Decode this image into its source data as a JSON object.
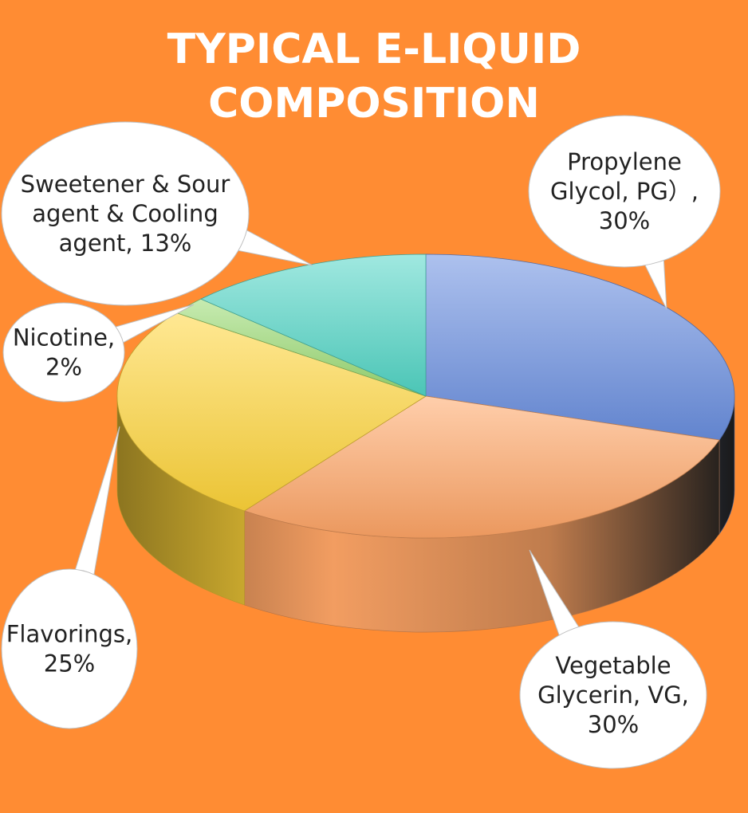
{
  "chart_data": {
    "type": "pie",
    "title_lines": [
      "TYPICAL E-LIQUID",
      "COMPOSITION"
    ],
    "series": [
      {
        "name": "Propylene Glycol, PG）",
        "value": 30,
        "label_lines": [
          "Propylene",
          "Glycol, PG）,",
          "30%"
        ],
        "color": "#6A8FE0"
      },
      {
        "name": "Vegetable Glycerin, VG",
        "value": 30,
        "label_lines": [
          "Vegetable",
          "Glycerin, VG,",
          "30%"
        ],
        "color": "#FFA566"
      },
      {
        "name": "Flavorings",
        "value": 25,
        "label_lines": [
          "Flavorings,",
          "25%"
        ],
        "color": "#FFD53A"
      },
      {
        "name": "Nicotine",
        "value": 2,
        "label_lines": [
          "Nicotine,",
          "2%"
        ],
        "color": "#9ADB72"
      },
      {
        "name": "Sweetener & Sour agent & Cooling agent",
        "value": 13,
        "label_lines": [
          "Sweetener & Sour",
          "agent & Cooling",
          "agent, 13%"
        ],
        "color": "#52D6C6"
      }
    ],
    "legend": "none",
    "style": "3d-pie-with-callouts"
  },
  "colors": {
    "background": "#FF8C33",
    "title": "#FFFFFF",
    "callout_fill": "#FFFFFF"
  }
}
